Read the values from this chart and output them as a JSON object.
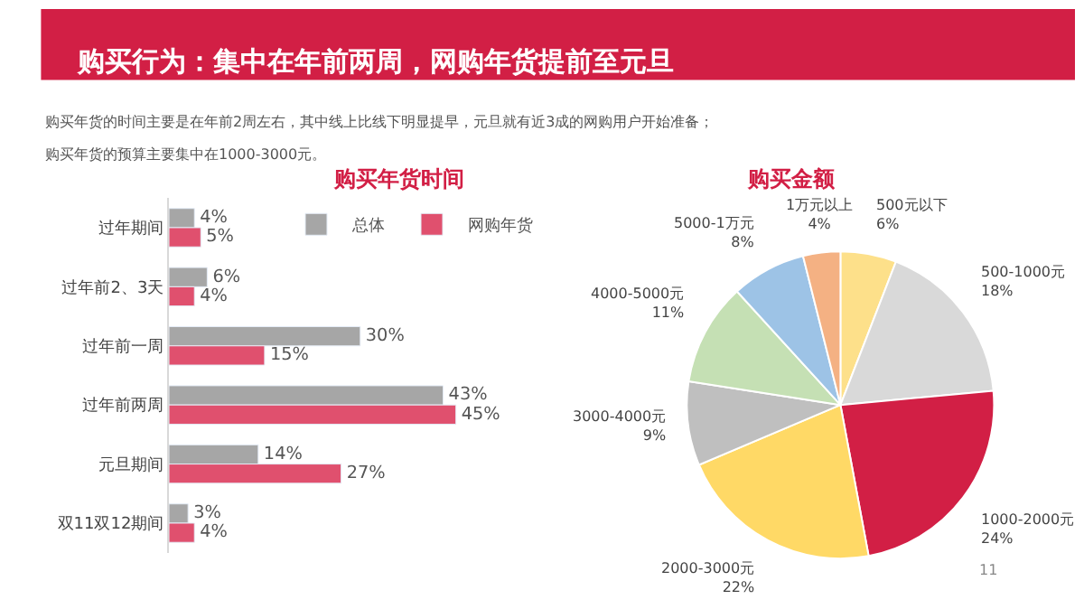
{
  "chart_data": [
    {
      "type": "bar",
      "orientation": "horizontal",
      "title": "购买年货时间",
      "annotations": [
        "购买行为：集中在年前两周，网购年货提前至元旦",
        "购买年货的时间主要是在年前2周左右，其中线上比线下明显提早，元旦就有近3成的网购用户开始准备；",
        "购买年货的预算主要集中在1000-3000元。"
      ],
      "categories": [
        "过年期间",
        "过年前2、3天",
        "过年前一周",
        "过年前两周",
        "元旦期间",
        "双11双12期间"
      ],
      "series": [
        {
          "name": "总体",
          "color": "#a6a6a6",
          "values": [
            4,
            6,
            30,
            43,
            14,
            3
          ],
          "value_labels": [
            "4%",
            "6%",
            "30%",
            "43%",
            "14%",
            "3%"
          ]
        },
        {
          "name": "网购年货",
          "color": "#e0506e",
          "values": [
            5,
            4,
            15,
            45,
            27,
            4
          ],
          "value_labels": [
            "5%",
            "4%",
            "15%",
            "45%",
            "27%",
            "4%"
          ]
        }
      ],
      "legend": "top right"
    },
    {
      "type": "pie",
      "title": "购买金额",
      "annotations": [
        "11"
      ],
      "categories": [
        "500元以下",
        "500-1000元",
        "1000-2000元",
        "2000-3000元",
        "3000-4000元",
        "4000-5000元",
        "5000-1万元",
        "1万元以上"
      ],
      "values": [
        6,
        18,
        24,
        22,
        9,
        11,
        8,
        4
      ],
      "value_labels": [
        "6%",
        "18%",
        "24%",
        "22%",
        "9%",
        "11%",
        "8%",
        "4%"
      ],
      "colors": [
        "#fde08a",
        "#d9d9d9",
        "#d21f45",
        "#ffd966",
        "#bfbfbf",
        "#c5e0b4",
        "#9dc3e6",
        "#f4b183"
      ]
    }
  ]
}
